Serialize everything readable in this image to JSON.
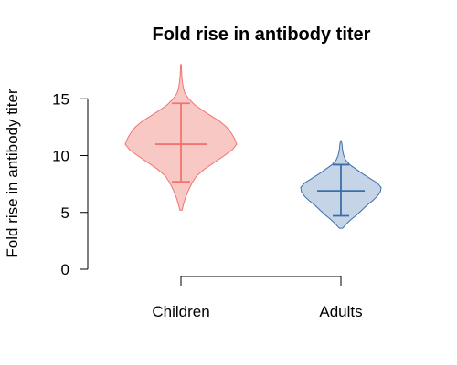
{
  "chart_data": {
    "type": "violin",
    "title": "Fold rise in antibody titer",
    "ylabel": "Fold rise in antibody titer",
    "xlabel": "",
    "ylim": [
      0,
      18
    ],
    "yticks": [
      0,
      5,
      10,
      15
    ],
    "ytick_labels": [
      "0",
      "5",
      "10",
      "15"
    ],
    "categories": [
      "Children",
      "Adults"
    ],
    "grid": false,
    "legend": "none",
    "series": [
      {
        "category": "Children",
        "min": 5.2,
        "max": 18.0,
        "mean": 11.0,
        "lower": 7.7,
        "upper": 14.6,
        "fill": "#f8c8c5",
        "stroke": "#f07470",
        "density": [
          [
            5.2,
            0.02
          ],
          [
            5.8,
            0.05
          ],
          [
            6.4,
            0.09
          ],
          [
            7.0,
            0.14
          ],
          [
            7.6,
            0.2
          ],
          [
            8.2,
            0.28
          ],
          [
            8.8,
            0.42
          ],
          [
            9.4,
            0.6
          ],
          [
            10.0,
            0.78
          ],
          [
            10.5,
            0.92
          ],
          [
            11.0,
            1.0
          ],
          [
            11.5,
            0.96
          ],
          [
            12.0,
            0.9
          ],
          [
            12.5,
            0.82
          ],
          [
            13.0,
            0.7
          ],
          [
            13.5,
            0.54
          ],
          [
            14.0,
            0.38
          ],
          [
            14.5,
            0.24
          ],
          [
            15.0,
            0.14
          ],
          [
            15.5,
            0.07
          ],
          [
            16.0,
            0.04
          ],
          [
            16.5,
            0.025
          ],
          [
            17.0,
            0.015
          ],
          [
            17.5,
            0.01
          ],
          [
            18.0,
            0.006
          ]
        ]
      },
      {
        "category": "Adults",
        "min": 3.6,
        "max": 11.3,
        "mean": 6.9,
        "lower": 4.7,
        "upper": 9.2,
        "fill": "#c5d4e6",
        "stroke": "#3c6fa8",
        "density": [
          [
            3.6,
            0.04
          ],
          [
            4.0,
            0.14
          ],
          [
            4.4,
            0.26
          ],
          [
            4.8,
            0.4
          ],
          [
            5.2,
            0.52
          ],
          [
            5.6,
            0.64
          ],
          [
            6.0,
            0.78
          ],
          [
            6.4,
            0.9
          ],
          [
            6.8,
            0.98
          ],
          [
            7.2,
            1.0
          ],
          [
            7.6,
            0.9
          ],
          [
            8.0,
            0.72
          ],
          [
            8.4,
            0.54
          ],
          [
            8.8,
            0.38
          ],
          [
            9.2,
            0.22
          ],
          [
            9.6,
            0.12
          ],
          [
            10.0,
            0.07
          ],
          [
            10.5,
            0.04
          ],
          [
            11.0,
            0.025
          ],
          [
            11.3,
            0.01
          ]
        ]
      }
    ]
  }
}
